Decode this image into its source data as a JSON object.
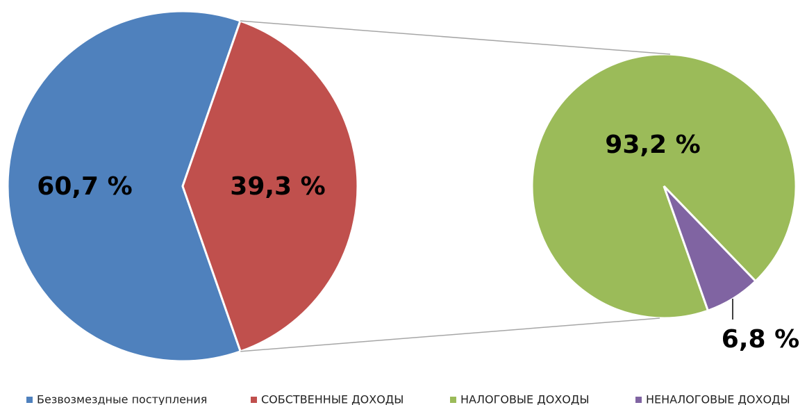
{
  "chart_data": [
    {
      "type": "pie",
      "categories": [
        "Безвозмездные поступления",
        "СОБСТВЕННЫЕ  ДОХОДЫ"
      ],
      "values": [
        60.7,
        39.3
      ],
      "value_labels": [
        "60,7 %",
        "39,3 %"
      ],
      "colors": [
        "#4f81bd",
        "#c0504d"
      ]
    },
    {
      "type": "pie",
      "categories": [
        "НАЛОГОВЫЕ  ДОХОДЫ",
        "НЕНАЛОГОВЫЕ  ДОХОДЫ"
      ],
      "values": [
        93.2,
        6.8
      ],
      "value_labels": [
        "93,2 %",
        "6,8 %"
      ],
      "colors": [
        "#9bbb59",
        "#8064a2"
      ]
    }
  ]
}
